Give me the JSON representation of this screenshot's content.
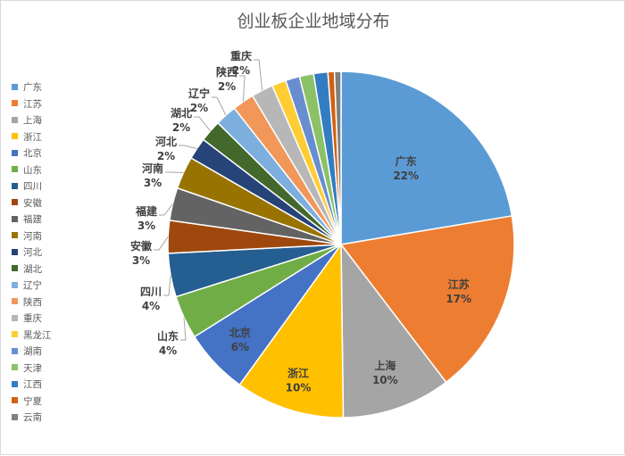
{
  "chart_data": {
    "type": "pie",
    "title": "创业板企业地域分布",
    "categories": [
      "广东",
      "江苏",
      "上海",
      "浙江",
      "北京",
      "山东",
      "四川",
      "安徽",
      "福建",
      "河南",
      "河北",
      "湖北",
      "辽宁",
      "陕西",
      "重庆",
      "黑龙江",
      "湖南",
      "天津",
      "江西",
      "宁夏",
      "云南"
    ],
    "values": [
      22,
      17,
      10,
      10,
      6,
      4,
      4,
      3,
      3,
      3,
      2,
      2,
      2,
      2,
      2,
      1.3,
      1.3,
      1.3,
      1.3,
      0.6,
      0.6
    ],
    "data_labels": [
      "22%",
      "17%",
      "10%",
      "10%",
      "6%",
      "4%",
      "4%",
      "3%",
      "3%",
      "3%",
      "2%",
      "2%",
      "2%",
      "2%",
      "2%",
      "",
      "",
      "",
      "",
      "",
      ""
    ],
    "colors": [
      "#5b9bd5",
      "#ed7d31",
      "#a5a5a5",
      "#ffc000",
      "#4472c4",
      "#70ad47",
      "#255e91",
      "#9e480e",
      "#636363",
      "#997300",
      "#264478",
      "#43682b",
      "#7cafdd",
      "#f1975a",
      "#b7b7b7",
      "#ffcd33",
      "#698ed0",
      "#8cc168",
      "#327dc2",
      "#d26012",
      "#7f7f7f"
    ],
    "legend_position": "left",
    "start_angle_deg": 0,
    "direction": "clockwise"
  }
}
